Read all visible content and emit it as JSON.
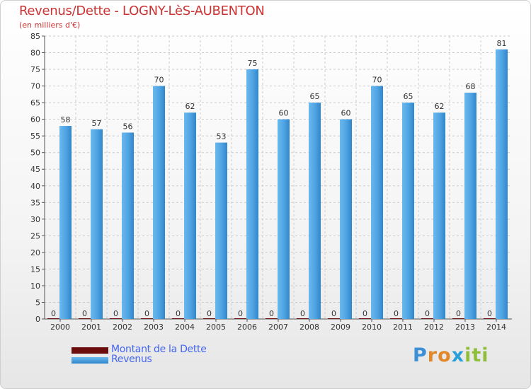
{
  "title": "Revenus/Dette - LOGNY-LèS-AUBENTON",
  "subtitle": "(en milliers d'€)",
  "logo": {
    "text": "Proxiti",
    "letter_colors": [
      "#3a8fd6",
      "#e0882a",
      "#e0882a",
      "#2a9fd6",
      "#8fbf3a",
      "#8fbf3a",
      "#8fbf3a"
    ]
  },
  "colors": {
    "debt": "#6b0d0d",
    "revenue": "#4fa3e2",
    "revenue_light": "#6ab8ef",
    "revenue_dark": "#2f86cc",
    "grid": "#cccccc",
    "title": "#cc3333",
    "legend_text": "#4466ee"
  },
  "chart_data": {
    "type": "bar",
    "title": "Revenus/Dette - LOGNY-LèS-AUBENTON",
    "ylabel": "(en milliers d'€)",
    "xlabel": "",
    "ylim": [
      0,
      85
    ],
    "ytick_step": 5,
    "grid": true,
    "legend_position": "bottom-left",
    "categories": [
      "2000",
      "2001",
      "2002",
      "2003",
      "2004",
      "2005",
      "2006",
      "2007",
      "2008",
      "2009",
      "2010",
      "2011",
      "2012",
      "2013",
      "2014"
    ],
    "series": [
      {
        "name": "Montant de la Dette",
        "color": "#6b0d0d",
        "values": [
          0,
          0,
          0,
          0,
          0,
          0,
          0,
          0,
          0,
          0,
          0,
          0,
          0,
          0,
          0
        ]
      },
      {
        "name": "Revenus",
        "color": "#4fa3e2",
        "values": [
          58,
          57,
          56,
          70,
          62,
          53,
          75,
          60,
          65,
          60,
          70,
          65,
          62,
          68,
          81
        ]
      }
    ]
  }
}
